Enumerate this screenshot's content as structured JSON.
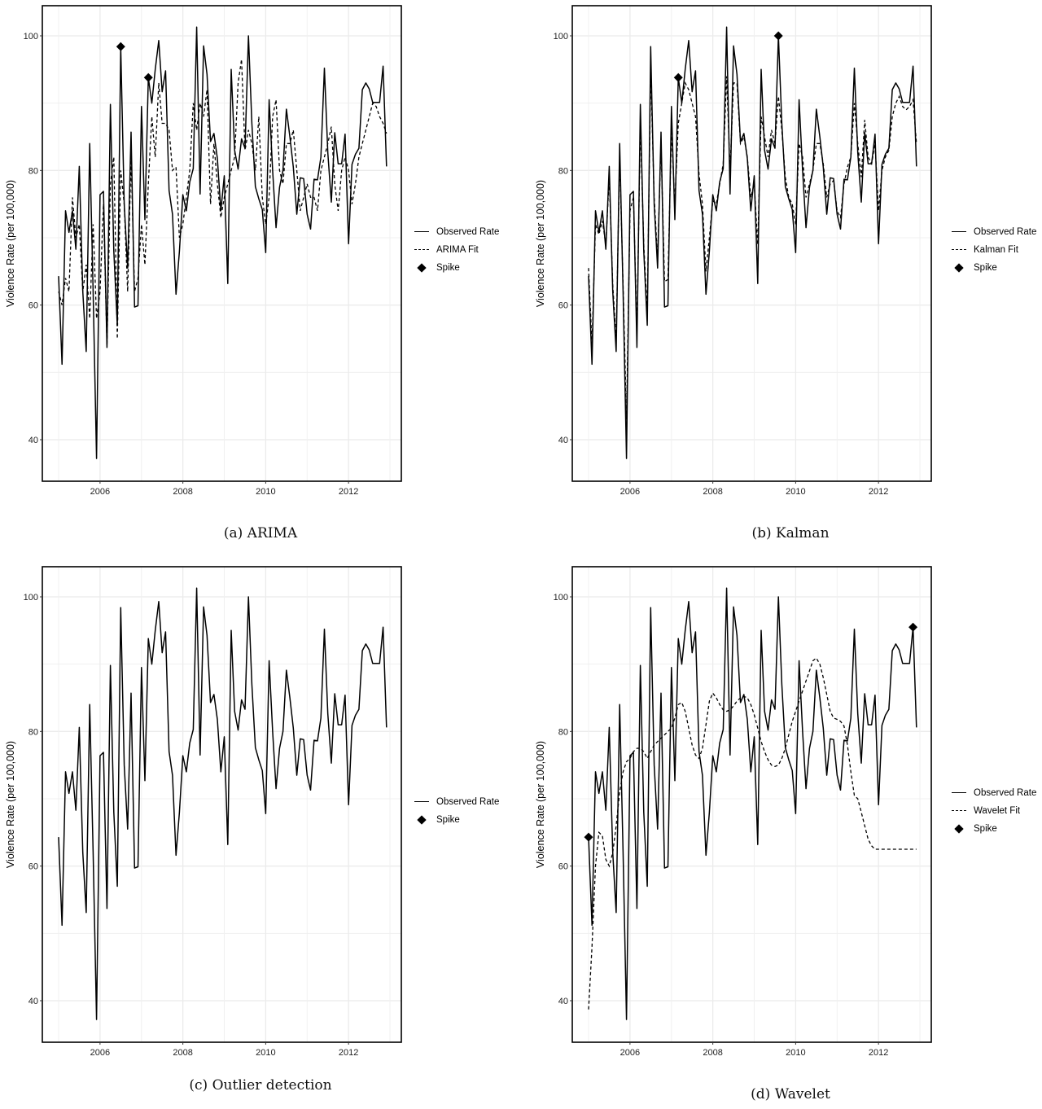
{
  "figure": {
    "y_axis_label": "Violence Rate (per 100,000)",
    "x_ticks": [
      "2006",
      "2008",
      "2010",
      "2012"
    ],
    "y_ticks": [
      "40",
      "60",
      "80",
      "100"
    ]
  },
  "panels": [
    {
      "id": "a",
      "caption": "(a) ARIMA",
      "legend": [
        "Observed Rate",
        "ARIMA Fit",
        "Spike"
      ],
      "fit_key": "arima_fit",
      "spike_key": "arima_spikes"
    },
    {
      "id": "b",
      "caption": "(b) Kalman",
      "legend": [
        "Observed Rate",
        "Kalman Fit",
        "Spike"
      ],
      "fit_key": "kalman_fit",
      "spike_key": "kalman_spikes"
    },
    {
      "id": "c",
      "caption": "(c) Outlier detection",
      "legend": [
        "Observed Rate",
        "Spike"
      ],
      "fit_key": null,
      "spike_key": "outlier_spikes"
    },
    {
      "id": "d",
      "caption": "(d) Wavelet",
      "legend": [
        "Observed Rate",
        "Wavelet Fit",
        "Spike"
      ],
      "fit_key": "wavelet_fit",
      "spike_key": "wavelet_spikes"
    }
  ],
  "chart_data": {
    "type": "line",
    "title": "",
    "xlabel": "",
    "ylabel": "Violence Rate (per 100,000)",
    "x_start": "2005-01",
    "x_end": "2012-12",
    "frequency": "monthly",
    "xlim": [
      2004.75,
      2013.1
    ],
    "ylim": [
      34,
      104.5
    ],
    "grid": true,
    "legend_position": "right",
    "observed": [
      64.3,
      51.2,
      74.0,
      70.8,
      74.0,
      68.3,
      80.6,
      62.0,
      53.1,
      84.0,
      62.0,
      37.2,
      76.4,
      76.9,
      53.7,
      89.8,
      68.0,
      57.0,
      98.4,
      75.0,
      65.5,
      85.7,
      59.7,
      59.9,
      89.5,
      72.7,
      93.8,
      90.0,
      95.0,
      99.3,
      91.7,
      94.8,
      77.0,
      73.5,
      61.6,
      68.0,
      76.4,
      74.0,
      78.3,
      80.3,
      101.3,
      76.5,
      98.5,
      94.3,
      84.3,
      85.5,
      81.8,
      74.0,
      79.2,
      63.2,
      95.0,
      83.0,
      80.2,
      84.7,
      83.3,
      100.0,
      87.0,
      77.6,
      75.8,
      74.2,
      67.8,
      90.5,
      80.0,
      71.5,
      77.5,
      80.0,
      89.1,
      85.0,
      80.5,
      73.5,
      78.9,
      78.8,
      73.5,
      71.3,
      78.7,
      78.6,
      82.0,
      95.2,
      82.6,
      75.3,
      85.6,
      81.0,
      81.0,
      85.4,
      69.1,
      80.9,
      82.4,
      83.3,
      92.0,
      93.0,
      92.1,
      90.1,
      90.1,
      90.1,
      95.5,
      80.6
    ],
    "arima_fit": [
      62.0,
      60.0,
      64.0,
      62.0,
      76.0,
      70.0,
      72.0,
      62.0,
      66.0,
      58.0,
      72.0,
      58.0,
      62.0,
      75.0,
      54.0,
      78.0,
      82.0,
      55.0,
      80.0,
      75.0,
      62.0,
      82.0,
      62.0,
      64.0,
      72.0,
      66.0,
      78.0,
      88.0,
      82.0,
      93.0,
      87.0,
      87.0,
      86.0,
      80.0,
      80.5,
      70.0,
      72.0,
      76.0,
      80.0,
      90.0,
      86.0,
      90.0,
      88.0,
      92.0,
      75.0,
      84.0,
      78.0,
      73.0,
      76.0,
      78.0,
      80.0,
      82.0,
      93.0,
      96.5,
      83.0,
      86.0,
      84.0,
      80.0,
      88.0,
      76.0,
      72.0,
      76.0,
      88.0,
      90.5,
      80.0,
      78.0,
      84.0,
      84.0,
      86.0,
      80.0,
      74.0,
      76.0,
      78.0,
      76.0,
      76.0,
      74.0,
      80.0,
      82.0,
      84.0,
      86.5,
      78.0,
      74.0,
      80.0,
      82.0,
      80.0,
      75.0,
      78.0,
      82.0,
      84.0,
      86.0,
      88.0,
      90.0,
      89.5,
      88.0,
      87.0,
      85.5
    ],
    "kalman_fit": [
      65.5,
      54.0,
      72.0,
      70.5,
      72.5,
      69.0,
      79.0,
      63.0,
      55.0,
      82.0,
      63.0,
      43.0,
      74.0,
      76.0,
      56.0,
      87.0,
      69.0,
      59.0,
      95.0,
      76.0,
      67.0,
      84.0,
      63.5,
      63.8,
      86.0,
      75.0,
      87.0,
      90.0,
      93.0,
      92.0,
      90.0,
      88.0,
      79.5,
      75.0,
      65.0,
      70.0,
      75.5,
      75.0,
      78.0,
      81.0,
      94.0,
      80.0,
      93.0,
      93.0,
      84.0,
      85.0,
      82.0,
      76.0,
      78.0,
      69.0,
      88.0,
      85.0,
      82.0,
      86.0,
      84.0,
      91.0,
      86.0,
      79.0,
      76.0,
      75.0,
      72.0,
      84.0,
      82.0,
      76.0,
      78.0,
      80.0,
      84.0,
      84.0,
      81.0,
      76.0,
      78.0,
      78.5,
      74.0,
      73.0,
      78.0,
      80.5,
      82.0,
      90.0,
      84.0,
      79.0,
      87.5,
      82.0,
      81.0,
      84.0,
      74.0,
      80.0,
      82.0,
      83.0,
      88.0,
      90.0,
      91.0,
      89.5,
      89.0,
      89.5,
      90.5,
      84.0
    ],
    "wavelet_fit": [
      38.7,
      48.0,
      60.0,
      65.0,
      64.5,
      61.0,
      60.0,
      62.0,
      66.0,
      71.0,
      74.0,
      75.5,
      76.0,
      77.0,
      77.5,
      77.5,
      77.0,
      76.0,
      77.0,
      78.0,
      78.5,
      79.0,
      79.5,
      80.0,
      80.5,
      82.0,
      84.0,
      84.3,
      83.0,
      80.5,
      78.0,
      76.5,
      76.0,
      77.5,
      81.0,
      84.5,
      85.7,
      85.0,
      84.0,
      83.2,
      83.0,
      83.2,
      83.8,
      84.5,
      85.0,
      85.2,
      85.0,
      84.0,
      82.5,
      80.5,
      78.5,
      77.0,
      75.8,
      75.0,
      74.8,
      75.0,
      76.0,
      77.5,
      79.5,
      81.5,
      83.0,
      84.5,
      86.0,
      87.5,
      89.0,
      90.5,
      90.9,
      90.0,
      88.0,
      85.5,
      83.0,
      82.0,
      81.8,
      81.5,
      80.8,
      78.0,
      74.0,
      70.5,
      70.0,
      68.0,
      66.0,
      64.0,
      63.0,
      62.5,
      62.5,
      62.5,
      62.5,
      62.5,
      62.5,
      62.5,
      62.5,
      62.5,
      62.5,
      62.5,
      62.5,
      62.5
    ],
    "wavelet_fit_note": "smoothed curve; values mapped to first 84 months scaled across 2005-01..2012-12",
    "arima_spikes": [
      {
        "x": "2006-07",
        "y": 98.4
      },
      {
        "x": "2007-03",
        "y": 93.8
      }
    ],
    "kalman_spikes": [
      {
        "x": "2007-03",
        "y": 93.8
      },
      {
        "x": "2009-08",
        "y": 100.0
      }
    ],
    "outlier_spikes": [],
    "wavelet_spikes": [
      {
        "x": "2005-01",
        "y": 64.3
      },
      {
        "x": "2012-11",
        "y": 95.5
      }
    ]
  }
}
